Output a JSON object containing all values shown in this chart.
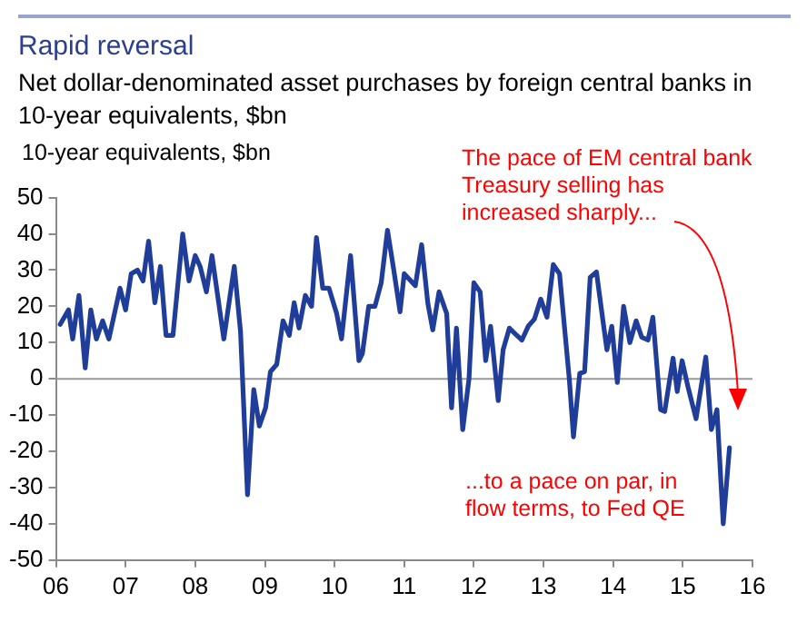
{
  "chart_data": {
    "type": "line",
    "title": "Rapid reversal",
    "subtitle": "Net dollar-denominated asset purchases by foreign central banks in 10-year equivalents, $bn",
    "ylabel": "10-year equivalents, $bn",
    "annotations": [
      "The pace of EM central bank Treasury selling has increased sharply...",
      "...to a pace on par, in flow terms, to Fed QE"
    ],
    "x": [
      2006.06,
      2006.18,
      2006.24,
      2006.33,
      2006.42,
      2006.5,
      2006.58,
      2006.67,
      2006.76,
      2006.92,
      2007.0,
      2007.08,
      2007.17,
      2007.25,
      2007.33,
      2007.42,
      2007.5,
      2007.58,
      2007.68,
      2007.82,
      2007.91,
      2008.0,
      2008.07,
      2008.16,
      2008.24,
      2008.41,
      2008.56,
      2008.65,
      2008.75,
      2008.84,
      2008.92,
      2009.01,
      2009.08,
      2009.17,
      2009.26,
      2009.35,
      2009.42,
      2009.49,
      2009.58,
      2009.67,
      2009.74,
      2009.83,
      2009.92,
      2010.03,
      2010.1,
      2010.23,
      2010.35,
      2010.4,
      2010.49,
      2010.58,
      2010.67,
      2010.76,
      2010.85,
      2010.94,
      2011.0,
      2011.16,
      2011.25,
      2011.34,
      2011.41,
      2011.5,
      2011.61,
      2011.68,
      2011.75,
      2011.84,
      2011.93,
      2012.0,
      2012.09,
      2012.17,
      2012.24,
      2012.35,
      2012.42,
      2012.51,
      2012.6,
      2012.69,
      2012.78,
      2012.87,
      2012.96,
      2013.05,
      2013.14,
      2013.23,
      2013.37,
      2013.43,
      2013.52,
      2013.59,
      2013.67,
      2013.76,
      2013.85,
      2013.91,
      2013.98,
      2014.06,
      2014.15,
      2014.24,
      2014.33,
      2014.41,
      2014.5,
      2014.57,
      2014.68,
      2014.74,
      2014.86,
      2014.92,
      2014.99,
      2015.08,
      2015.19,
      2015.33,
      2015.41,
      2015.49,
      2015.58,
      2015.67
    ],
    "series": [
      {
        "color": "#1f3d99",
        "values": [
          15,
          19,
          11,
          23,
          3,
          19,
          11,
          16,
          11,
          25,
          19,
          29,
          30,
          27,
          38,
          21,
          31,
          12,
          12,
          40,
          27,
          34,
          31,
          24,
          34,
          11,
          31,
          13,
          -32,
          -3,
          -13,
          -8,
          2,
          4,
          16,
          12,
          21,
          14,
          23,
          20,
          39,
          25,
          25,
          18,
          11,
          34,
          5,
          7,
          20,
          20,
          26.5,
          41,
          30,
          18.5,
          29,
          25.7,
          37,
          20.7,
          13.5,
          24,
          18,
          -8,
          14,
          -14,
          0,
          26.5,
          24,
          5,
          14.5,
          -6,
          8,
          14,
          12.3,
          10.7,
          14.5,
          16.5,
          22,
          17,
          31.5,
          29,
          0,
          -16,
          1.5,
          2,
          28,
          29.5,
          16.5,
          8,
          14.5,
          -1,
          20,
          10,
          16,
          11.5,
          10.7,
          17,
          -8.5,
          -9,
          5.7,
          -3.5,
          5,
          -2.7,
          -11,
          6,
          -14,
          -8.5,
          -40,
          -19
        ]
      }
    ],
    "xlim": [
      2006,
      2016
    ],
    "xticks": [
      {
        "value": 2006,
        "label": "06"
      },
      {
        "value": 2007,
        "label": "07"
      },
      {
        "value": 2008,
        "label": "08"
      },
      {
        "value": 2009,
        "label": "09"
      },
      {
        "value": 2010,
        "label": "10"
      },
      {
        "value": 2011,
        "label": "11"
      },
      {
        "value": 2012,
        "label": "12"
      },
      {
        "value": 2013,
        "label": "13"
      },
      {
        "value": 2014,
        "label": "14"
      },
      {
        "value": 2015,
        "label": "15"
      },
      {
        "value": 2016,
        "label": "16"
      }
    ],
    "ylim": [
      -50,
      50
    ],
    "yticks": [
      -50,
      -40,
      -30,
      -20,
      -10,
      0,
      10,
      20,
      30,
      40,
      50
    ],
    "ref_lines": [
      {
        "axis": "y",
        "value": 0,
        "color": "#999999"
      }
    ],
    "grid": false,
    "legend": false,
    "marker": "none",
    "line_style": "solid"
  }
}
